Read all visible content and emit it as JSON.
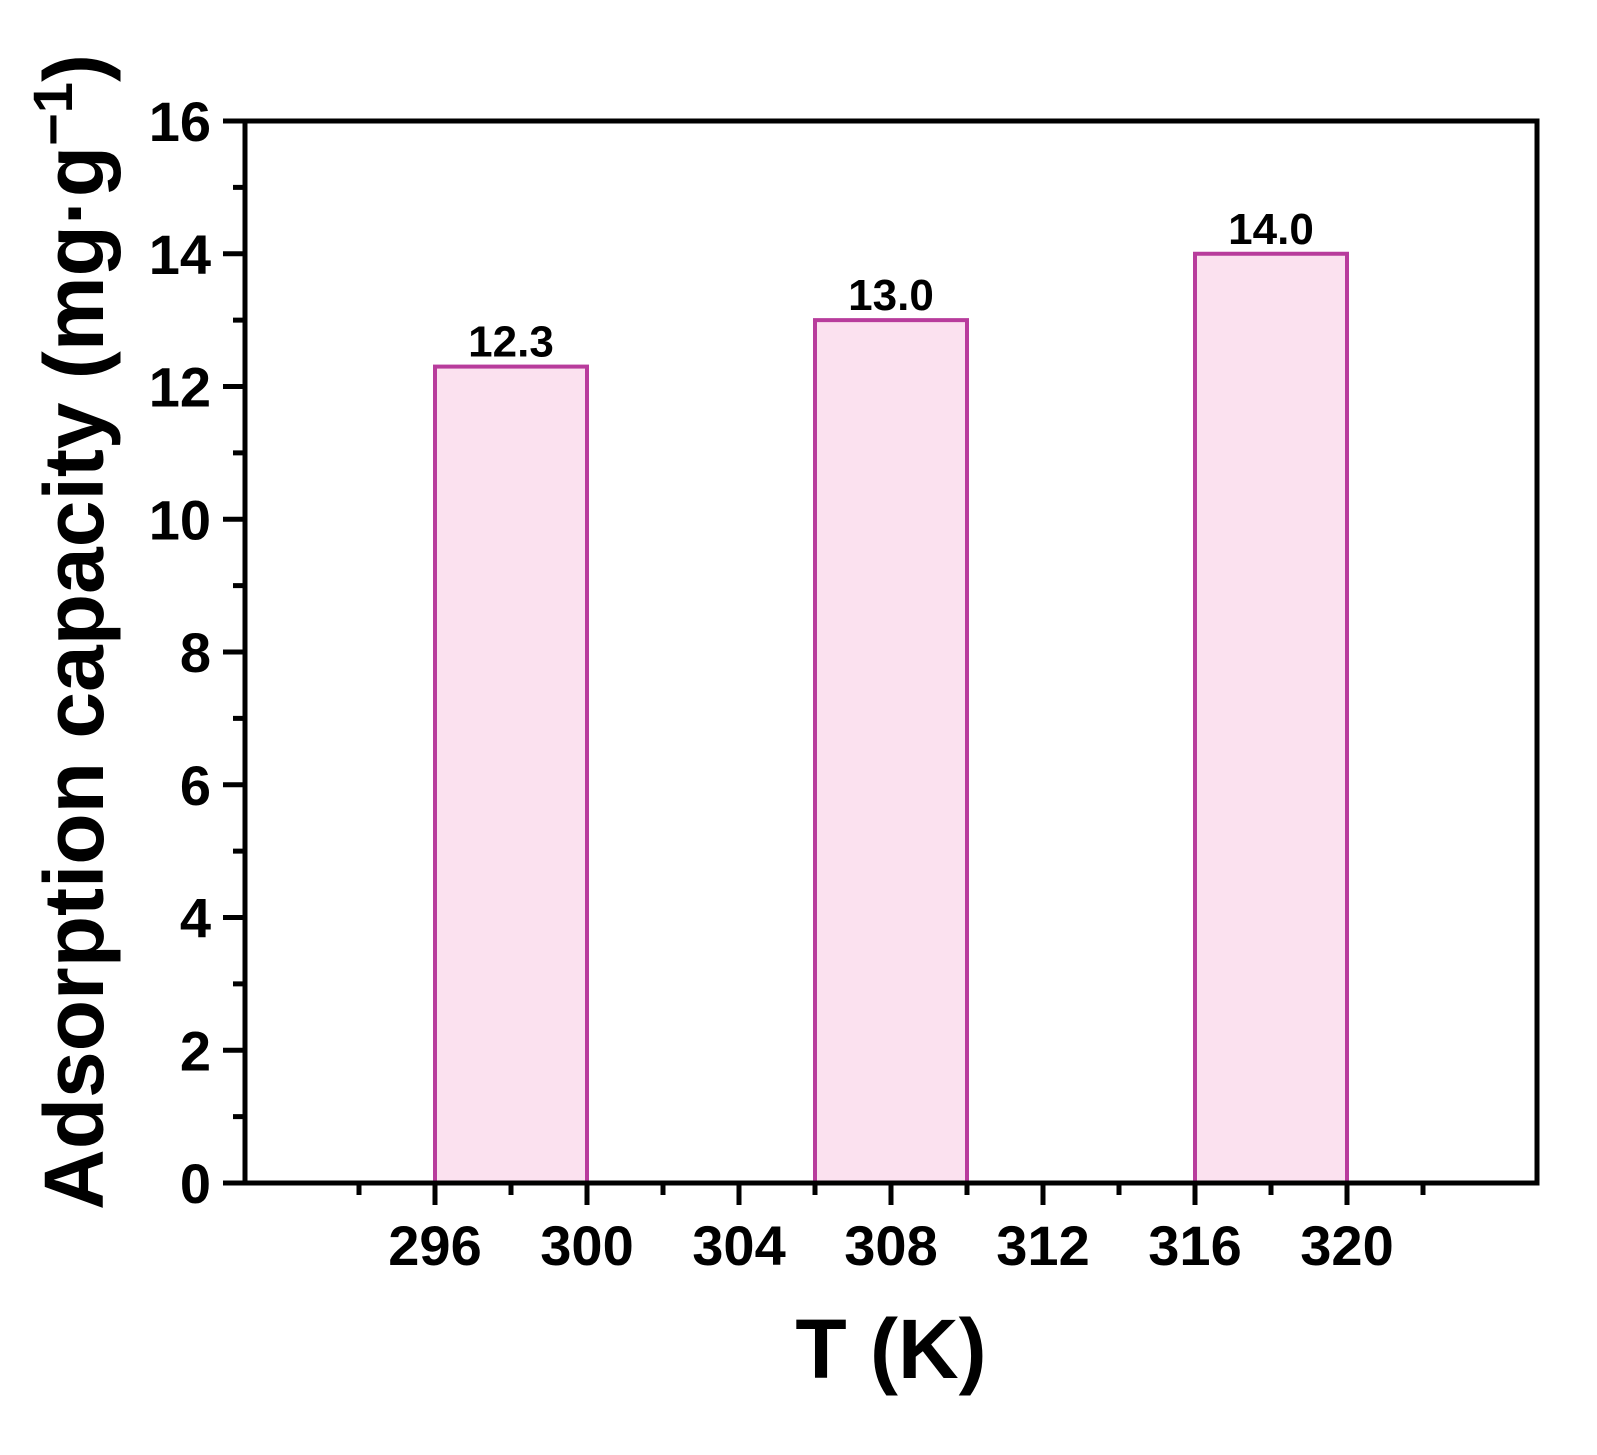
{
  "chart_data": {
    "type": "bar",
    "title": "",
    "xlabel": "T (K)",
    "ylabel_main": "Adsorption capacity (mg·g",
    "ylabel_sup": "−1",
    "ylabel_close": ")",
    "xlim": [
      291,
      325
    ],
    "ylim": [
      0,
      16
    ],
    "x_ticks": [
      296,
      300,
      304,
      308,
      312,
      316,
      320
    ],
    "y_ticks": [
      0,
      2,
      4,
      6,
      8,
      10,
      12,
      14,
      16
    ],
    "bar_width": 4,
    "grid": false,
    "legend": "none",
    "bars": [
      {
        "x": 298,
        "value": 12.3,
        "label": "12.3"
      },
      {
        "x": 308,
        "value": 13.0,
        "label": "13.0"
      },
      {
        "x": 318,
        "value": 14.0,
        "label": "14.0"
      }
    ],
    "colors": {
      "bar_fill": "#fbe1ef",
      "bar_stroke": "#b83c9c",
      "axis": "#000000"
    }
  }
}
